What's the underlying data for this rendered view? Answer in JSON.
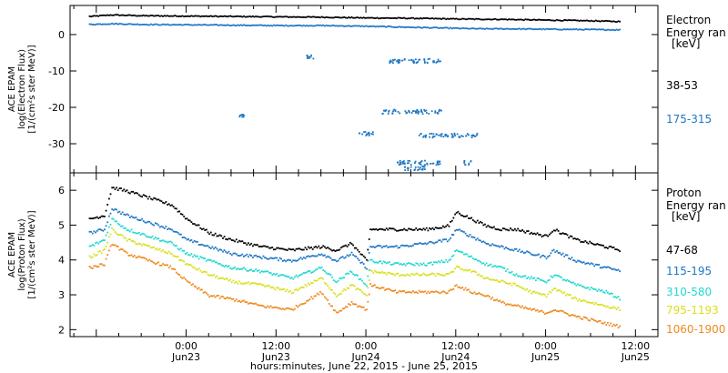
{
  "xlabel": "hours:minutes, June 22, 2015 - June 25, 2015",
  "x_ticks": [
    {
      "time": "0:00",
      "date": "Jun23",
      "hours": 24
    },
    {
      "time": "12:00",
      "date": "Jun23",
      "hours": 36
    },
    {
      "time": "0:00",
      "date": "Jun24",
      "hours": 48
    },
    {
      "time": "12:00",
      "date": "Jun24",
      "hours": 60
    },
    {
      "time": "0:00",
      "date": "Jun25",
      "hours": 72
    },
    {
      "time": "12:00",
      "date": "Jun25",
      "hours": 84
    }
  ],
  "colors": {
    "black": "#000000",
    "blue": "#1f77c4",
    "cyan": "#22d8d0",
    "yellow": "#d8e020",
    "orange": "#ee8a20"
  },
  "chart_data": [
    {
      "type": "scatter",
      "ylabel_lines": [
        "ACE EPAM",
        "log(Electron Flux)",
        "[1/(cm²s ster MeV)]"
      ],
      "ylim": [
        -38,
        8
      ],
      "yticks": [
        0,
        -10,
        -20,
        -30
      ],
      "xlim_hours": [
        8.5,
        87
      ],
      "legend_title": [
        "Electron",
        "Energy ran",
        "[keV]"
      ],
      "series": [
        {
          "name": "38-53",
          "color": "#000000",
          "x": [
            11,
            14,
            18,
            24,
            30,
            36,
            42,
            48,
            54,
            60,
            66,
            72,
            78,
            82
          ],
          "y": [
            5.2,
            5.6,
            5.4,
            5.3,
            5.2,
            5.1,
            5.0,
            4.8,
            4.7,
            4.5,
            4.4,
            4.2,
            4.0,
            3.8
          ]
        },
        {
          "name": "175-315",
          "color": "#1f77c4",
          "x": [
            11,
            14,
            18,
            24,
            30,
            36,
            42,
            48,
            63,
            66,
            72,
            78,
            82
          ],
          "y": [
            3.0,
            3.2,
            3.0,
            2.9,
            2.8,
            2.7,
            2.7,
            2.5,
            1.8,
            1.8,
            1.7,
            1.6,
            1.5
          ]
        }
      ]
    },
    {
      "type": "scatter",
      "ylabel_lines": [
        "ACE EPAM",
        "log(Proton Flux)",
        "[1/(cm²s ster MeV)]"
      ],
      "ylim": [
        1.8,
        6.5
      ],
      "yticks": [
        2,
        3,
        4,
        5,
        6
      ],
      "xlim_hours": [
        8.5,
        87
      ],
      "legend_title": [
        "Proton",
        "Energy ran",
        "[keV]"
      ],
      "series": [
        {
          "name": "47-68",
          "color": "#000000",
          "x": [
            11,
            13,
            14,
            16,
            19,
            22,
            24,
            27,
            30,
            34,
            38,
            42,
            44,
            46,
            48,
            48.5,
            52,
            56,
            59,
            60,
            62,
            64,
            66,
            68,
            70,
            72,
            73,
            76,
            80,
            82
          ],
          "y": [
            5.2,
            5.3,
            6.1,
            6.0,
            5.8,
            5.6,
            5.2,
            4.8,
            4.6,
            4.4,
            4.3,
            4.4,
            4.3,
            4.5,
            4.0,
            4.9,
            4.9,
            4.9,
            5.0,
            5.4,
            5.2,
            5.0,
            4.9,
            4.9,
            4.8,
            4.7,
            4.9,
            4.6,
            4.4,
            4.3
          ]
        },
        {
          "name": "115-195",
          "color": "#1f77c4",
          "x": [
            11,
            13,
            14,
            16,
            19,
            22,
            24,
            27,
            30,
            34,
            38,
            42,
            44,
            46,
            48,
            48.5,
            52,
            56,
            59,
            60,
            62,
            64,
            66,
            68,
            70,
            72,
            73,
            76,
            80,
            82
          ],
          "y": [
            4.8,
            4.9,
            5.5,
            5.3,
            5.1,
            4.9,
            4.6,
            4.4,
            4.2,
            4.1,
            4.0,
            4.2,
            4.0,
            4.2,
            3.8,
            4.4,
            4.4,
            4.5,
            4.6,
            4.9,
            4.7,
            4.5,
            4.4,
            4.3,
            4.2,
            4.1,
            4.3,
            4.0,
            3.8,
            3.7
          ]
        },
        {
          "name": "310-580",
          "color": "#22d8d0",
          "x": [
            11,
            13,
            14,
            16,
            19,
            22,
            24,
            27,
            30,
            34,
            38,
            42,
            44,
            46,
            48,
            48.5,
            52,
            56,
            59,
            60,
            62,
            64,
            66,
            68,
            70,
            72,
            73,
            76,
            80,
            82
          ],
          "y": [
            4.4,
            4.6,
            5.2,
            4.9,
            4.7,
            4.5,
            4.2,
            4.0,
            3.8,
            3.7,
            3.5,
            3.8,
            3.4,
            3.7,
            3.3,
            4.0,
            3.9,
            3.9,
            4.0,
            4.3,
            4.1,
            3.9,
            3.8,
            3.6,
            3.5,
            3.4,
            3.6,
            3.3,
            3.1,
            2.9
          ]
        },
        {
          "name": "795-1193",
          "color": "#d8e020",
          "x": [
            11,
            13,
            14,
            16,
            19,
            22,
            24,
            27,
            30,
            34,
            38,
            42,
            44,
            46,
            48,
            48.5,
            52,
            56,
            59,
            60,
            62,
            64,
            66,
            68,
            70,
            72,
            73,
            76,
            80,
            82
          ],
          "y": [
            4.1,
            4.3,
            4.9,
            4.6,
            4.4,
            4.2,
            3.9,
            3.6,
            3.4,
            3.3,
            3.1,
            3.5,
            3.0,
            3.3,
            3.0,
            3.7,
            3.6,
            3.6,
            3.6,
            3.8,
            3.7,
            3.5,
            3.4,
            3.3,
            3.1,
            3.0,
            3.2,
            2.9,
            2.7,
            2.6
          ]
        },
        {
          "name": "1060-1900",
          "color": "#ee8a20",
          "x": [
            11,
            13,
            14,
            16,
            19,
            22,
            24,
            27,
            30,
            34,
            38,
            42,
            44,
            46,
            48,
            48.5,
            52,
            56,
            59,
            60,
            62,
            64,
            66,
            68,
            70,
            72,
            73,
            76,
            80,
            82
          ],
          "y": [
            3.8,
            3.9,
            4.5,
            4.2,
            4.0,
            3.8,
            3.4,
            3.0,
            2.9,
            2.7,
            2.6,
            3.1,
            2.5,
            2.8,
            2.6,
            3.3,
            3.1,
            3.1,
            3.1,
            3.3,
            3.1,
            3.0,
            2.8,
            2.7,
            2.6,
            2.5,
            2.6,
            2.4,
            2.2,
            2.1
          ]
        }
      ]
    }
  ]
}
